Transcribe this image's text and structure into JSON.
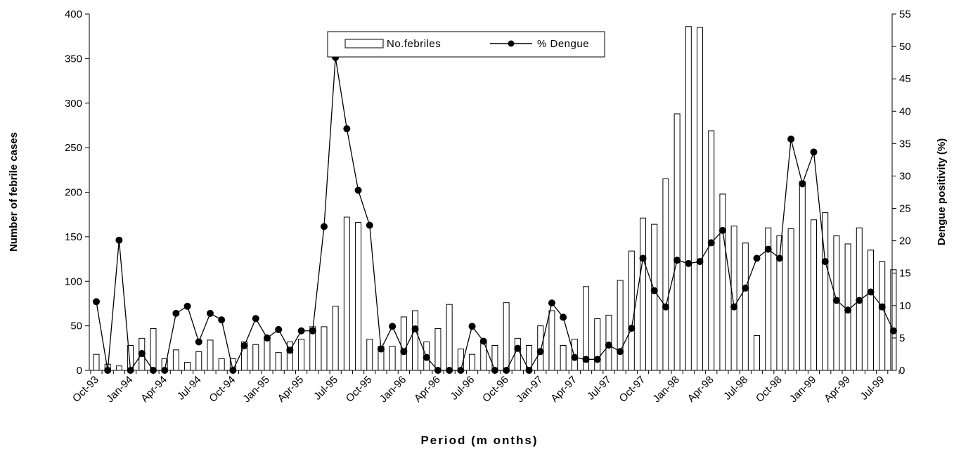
{
  "chart_data": {
    "type": "bar",
    "title": "",
    "xlabel": "Period (m onths)",
    "ylabel": "Number of febrile cases",
    "y2label": "Dengue positivity (%)",
    "ylim": [
      0,
      400
    ],
    "y2lim": [
      0,
      55
    ],
    "yticks": [
      0,
      50,
      100,
      150,
      200,
      250,
      300,
      350,
      400
    ],
    "y2ticks": [
      0,
      5,
      10,
      15,
      20,
      25,
      30,
      35,
      40,
      45,
      50,
      55
    ],
    "legend_position": "top-center",
    "grid": false,
    "xtick_labels": [
      "Oct-93",
      "Jan-94",
      "Apr-94",
      "Jul-94",
      "Oct-94",
      "Jan-95",
      "Apr-95",
      "Jul-95",
      "Oct-95",
      "Jan-96",
      "Apr-96",
      "Jul-96",
      "Oct-96",
      "Jan-97",
      "Apr-97",
      "Jul-97",
      "Oct-97",
      "Jan-98",
      "Apr-98",
      "Jul-98",
      "Oct-98",
      "Jan-99",
      "Apr-99",
      "Jul-99"
    ],
    "xtick_every": 3,
    "series": [
      {
        "name": "No.febriles",
        "type": "bar",
        "axis": "left",
        "color": "#ffffff",
        "values": [
          18,
          7,
          5,
          28,
          36,
          47,
          13,
          23,
          9,
          21,
          34,
          13,
          13,
          32,
          29,
          36,
          20,
          32,
          35,
          49,
          49,
          72,
          172,
          166,
          35,
          27,
          27,
          60,
          67,
          32,
          47,
          74,
          24,
          18,
          31,
          28,
          76,
          36,
          28,
          50,
          67,
          28,
          35,
          94,
          58,
          62,
          101,
          134,
          171,
          164,
          215,
          288,
          386,
          385,
          269,
          198,
          162,
          143,
          39,
          160,
          151,
          159,
          212,
          169,
          177,
          151,
          142,
          160,
          135,
          122,
          113
        ]
      },
      {
        "name": "% Dengue",
        "type": "line",
        "axis": "right",
        "color": "#000000",
        "values": [
          10.6,
          0,
          20.1,
          0,
          2.6,
          0,
          0,
          8.8,
          9.9,
          4.4,
          8.8,
          7.8,
          0,
          3.8,
          8.0,
          5.0,
          6.3,
          3.1,
          6.1,
          6.1,
          22.2,
          48.3,
          37.3,
          27.8,
          22.4,
          3.3,
          6.8,
          2.9,
          6.4,
          2.0,
          0,
          0,
          0,
          6.8,
          4.5,
          0,
          0,
          3.4,
          0,
          2.9,
          10.4,
          8.2,
          2.0,
          1.7,
          1.7,
          3.9,
          2.9,
          6.5,
          17.3,
          12.3,
          9.8,
          17.0,
          16.5,
          16.8,
          19.7,
          21.6,
          9.8,
          12.7,
          17.3,
          18.7,
          17.3,
          35.7,
          28.8,
          33.7,
          16.8,
          10.8,
          9.3,
          10.8,
          12.1,
          9.8,
          6.1
        ]
      }
    ]
  }
}
